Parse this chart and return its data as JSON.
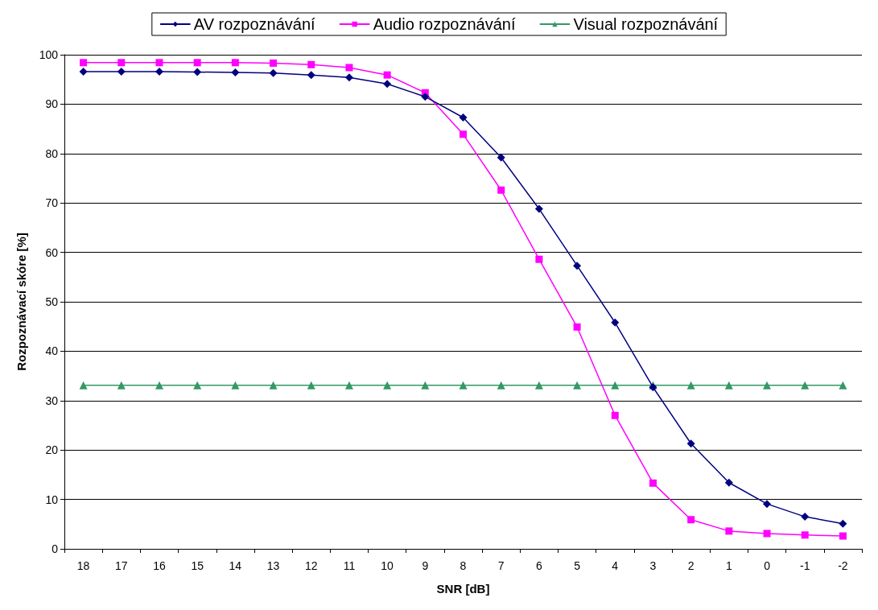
{
  "chart_data": {
    "type": "line",
    "xlabel": "SNR [dB]",
    "ylabel": "Rozpoznávací skóre [%]",
    "categories": [
      "18",
      "17",
      "16",
      "15",
      "14",
      "13",
      "12",
      "11",
      "10",
      "9",
      "8",
      "7",
      "6",
      "5",
      "4",
      "3",
      "2",
      "1",
      "0",
      "-1",
      "-2"
    ],
    "series": [
      {
        "name": "AV rozpoznávání",
        "color": "#000080",
        "marker": "diamond",
        "values": [
          96.6,
          96.6,
          96.6,
          96.5,
          96.4,
          96.3,
          95.9,
          95.4,
          94.1,
          91.5,
          87.3,
          79.2,
          68.8,
          57.3,
          45.8,
          32.7,
          21.3,
          13.4,
          9.1,
          6.5,
          5.1
        ]
      },
      {
        "name": "Audio rozpoznávání",
        "color": "#ff00ff",
        "marker": "square",
        "values": [
          98.4,
          98.4,
          98.4,
          98.4,
          98.4,
          98.3,
          98.0,
          97.4,
          95.9,
          92.3,
          83.9,
          72.6,
          58.6,
          44.9,
          27.0,
          13.3,
          5.9,
          3.6,
          3.1,
          2.8,
          2.6
        ]
      },
      {
        "name": "Visual rozpoznávání",
        "color": "#339966",
        "marker": "triangle",
        "values": [
          33.1,
          33.1,
          33.1,
          33.1,
          33.1,
          33.1,
          33.1,
          33.1,
          33.1,
          33.1,
          33.1,
          33.1,
          33.1,
          33.1,
          33.1,
          33.1,
          33.1,
          33.1,
          33.1,
          33.1,
          33.1
        ]
      }
    ],
    "ylim": [
      0,
      100
    ],
    "yticks": [
      0,
      10,
      20,
      30,
      40,
      50,
      60,
      70,
      80,
      90,
      100
    ],
    "grid": "y",
    "legend": "top",
    "line_style": "solid"
  }
}
